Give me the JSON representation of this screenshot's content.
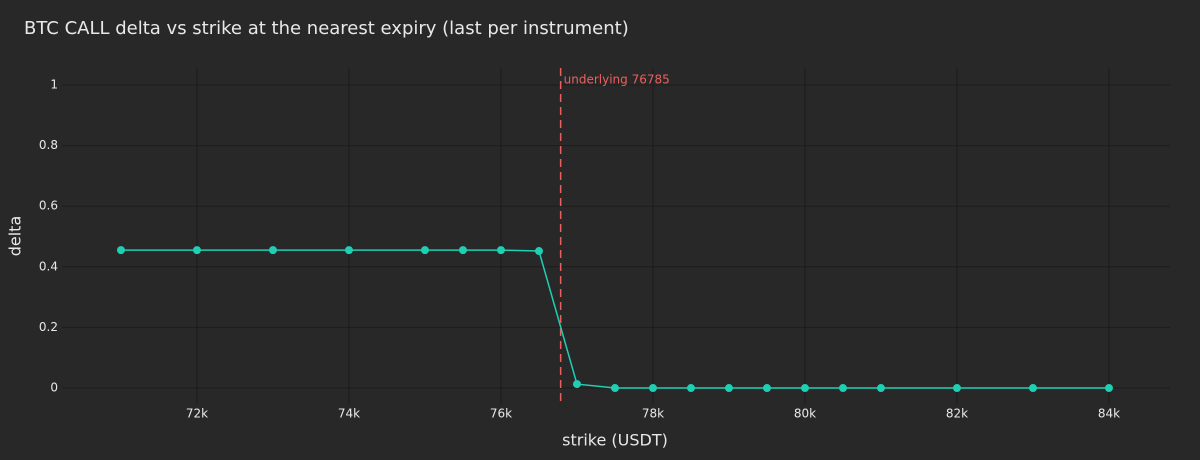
{
  "chart_data": {
    "type": "line",
    "title": "BTC CALL delta vs strike at the nearest expiry (last per instrument)",
    "x_label": "strike (USDT)",
    "y_label": "delta",
    "x": [
      71000,
      72000,
      73000,
      74000,
      75000,
      75500,
      76000,
      76500,
      77000,
      77500,
      78000,
      78500,
      79000,
      79500,
      80000,
      80500,
      81000,
      82000,
      83000,
      84000
    ],
    "series": [
      {
        "name": "delta",
        "color": "#1fcfb4",
        "values": [
          0.455,
          0.455,
          0.455,
          0.455,
          0.455,
          0.455,
          0.455,
          0.452,
          0.013,
          0,
          0,
          0,
          0,
          0,
          0,
          0,
          0,
          0,
          0,
          0
        ]
      }
    ],
    "xlim": [
      70224,
      84803
    ],
    "ylim": [
      -0.056,
      1.056
    ],
    "xticks": [
      {
        "value": 72000,
        "label": "72k"
      },
      {
        "value": 74000,
        "label": "74k"
      },
      {
        "value": 76000,
        "label": "76k"
      },
      {
        "value": 78000,
        "label": "78k"
      },
      {
        "value": 80000,
        "label": "80k"
      },
      {
        "value": 82000,
        "label": "82k"
      },
      {
        "value": 84000,
        "label": "84k"
      }
    ],
    "yticks": [
      0,
      0.2,
      0.4,
      0.6,
      0.8,
      1
    ],
    "grid": true,
    "vline": {
      "x": 76785,
      "label": "underlying 76785",
      "color": "#e8615f"
    }
  }
}
